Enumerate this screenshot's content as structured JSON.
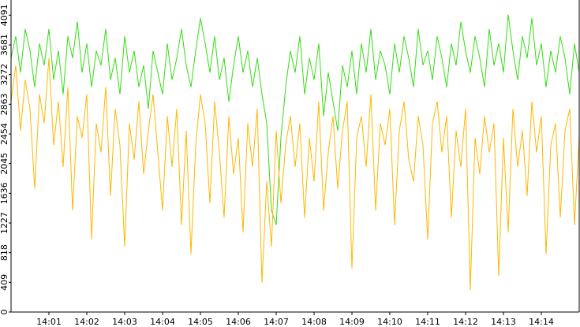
{
  "chart_data": {
    "type": "line",
    "categories": [
      null,
      null,
      null,
      null,
      null,
      null,
      null,
      null,
      "14:01",
      null,
      null,
      null,
      null,
      null,
      null,
      null,
      "14:02",
      null,
      null,
      null,
      null,
      null,
      null,
      null,
      "14:03",
      null,
      null,
      null,
      null,
      null,
      null,
      null,
      "14:04",
      null,
      null,
      null,
      null,
      null,
      null,
      null,
      "14:05",
      null,
      null,
      null,
      null,
      null,
      null,
      null,
      "14:06",
      null,
      null,
      null,
      null,
      null,
      null,
      null,
      "14:07",
      null,
      null,
      null,
      null,
      null,
      null,
      null,
      "14:08",
      null,
      null,
      null,
      null,
      null,
      null,
      null,
      "14:09",
      null,
      null,
      null,
      null,
      null,
      null,
      null,
      "14:10",
      null,
      null,
      null,
      null,
      null,
      null,
      null,
      "14:11",
      null,
      null,
      null,
      null,
      null,
      null,
      null,
      "14:12",
      null,
      null,
      null,
      null,
      null,
      null,
      null,
      "14:13",
      null,
      null,
      null,
      null,
      null,
      null,
      null,
      "14:14",
      null,
      null,
      null,
      null,
      null,
      null,
      null,
      null
    ],
    "series": [
      {
        "color": "#33dd11",
        "values": [
          3500,
          3800,
          3300,
          3900,
          3600,
          3100,
          3700,
          3400,
          3900,
          3200,
          3600,
          3000,
          3800,
          3500,
          4000,
          3300,
          3700,
          3100,
          3600,
          3400,
          3900,
          3200,
          3500,
          3000,
          3800,
          3300,
          3600,
          3100,
          3400,
          2800,
          3600,
          3300,
          3000,
          3700,
          3200,
          3500,
          3900,
          3400,
          3100,
          3600,
          4050,
          3700,
          3300,
          3800,
          3200,
          3500,
          2900,
          3400,
          3800,
          3300,
          3600,
          3100,
          3500,
          3000,
          2600,
          1400,
          1200,
          2400,
          3100,
          3600,
          3300,
          3800,
          3000,
          3500,
          3200,
          3700,
          2700,
          3300,
          2900,
          2500,
          3400,
          3100,
          3600,
          3000,
          3700,
          3300,
          3900,
          3200,
          3600,
          3400,
          3000,
          3700,
          3300,
          3800,
          3500,
          3100,
          3900,
          3400,
          3600,
          3200,
          3800,
          3500,
          3100,
          3700,
          3400,
          4000,
          3600,
          3300,
          3800,
          3500,
          3100,
          3900,
          3400,
          3700,
          3300,
          4100,
          3600,
          3200,
          3800,
          3500,
          4050,
          3400,
          3700,
          3100,
          3600,
          3300,
          3800,
          3500,
          3000,
          3700,
          3300
        ]
      },
      {
        "color": "#ffb700",
        "values": [
          2900,
          3400,
          2500,
          3200,
          2800,
          1700,
          3000,
          2600,
          3500,
          2300,
          2900,
          2000,
          3100,
          1400,
          2700,
          2400,
          3000,
          1000,
          2600,
          2200,
          3100,
          1600,
          2800,
          2300,
          900,
          2600,
          2100,
          2900,
          1900,
          2500,
          3000,
          2200,
          1400,
          2700,
          2000,
          2800,
          1200,
          2500,
          800,
          2300,
          3000,
          2600,
          1500,
          2900,
          2200,
          1300,
          2700,
          1900,
          2400,
          1100,
          2600,
          2000,
          2800,
          400,
          1800,
          900,
          2500,
          1500,
          2300,
          2700,
          2000,
          2600,
          1300,
          2400,
          1800,
          2900,
          1400,
          2200,
          2700,
          1700,
          2500,
          2900,
          600,
          2400,
          2700,
          2000,
          3000,
          1400,
          2600,
          2300,
          2800,
          1200,
          2500,
          2900,
          2100,
          1800,
          2700,
          2300,
          1000,
          2600,
          2900,
          2200,
          2700,
          1300,
          2500,
          2000,
          2800,
          300,
          2400,
          1900,
          2700,
          2200,
          2600,
          500,
          2400,
          1100,
          2800,
          2000,
          2500,
          1600,
          2900,
          2200,
          2700,
          800,
          2300,
          2600,
          1300,
          2500,
          2800,
          1200,
          2400
        ]
      }
    ],
    "ylim": [
      0,
      4300
    ],
    "yticks": [
      0,
      409,
      818,
      1227,
      1636,
      2045,
      2454,
      2863,
      3272,
      3681,
      4091
    ]
  }
}
